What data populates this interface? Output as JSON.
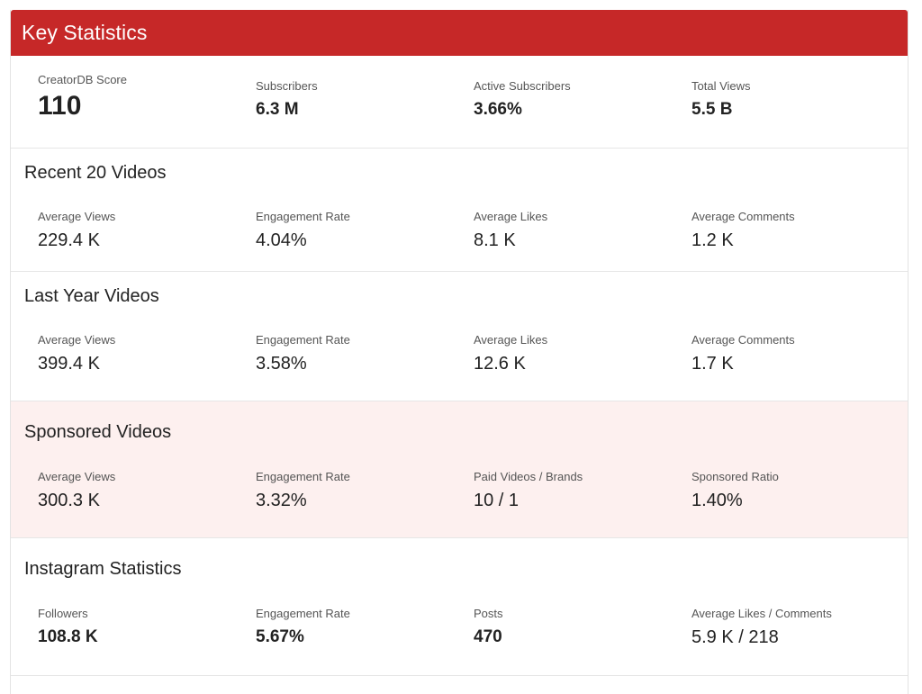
{
  "header": {
    "title": "Key Statistics"
  },
  "overview": {
    "stats": [
      {
        "label": "CreatorDB Score",
        "value": "110"
      },
      {
        "label": "Subscribers",
        "value": "6.3 M"
      },
      {
        "label": "Active Subscribers",
        "value": "3.66%"
      },
      {
        "label": "Total Views",
        "value": "5.5 B"
      }
    ]
  },
  "recent": {
    "title": "Recent 20 Videos",
    "stats": [
      {
        "label": "Average Views",
        "value": "229.4 K"
      },
      {
        "label": "Engagement Rate",
        "value": "4.04%"
      },
      {
        "label": "Average Likes",
        "value": "8.1 K"
      },
      {
        "label": "Average Comments",
        "value": "1.2 K"
      }
    ]
  },
  "lastyear": {
    "title": "Last Year Videos",
    "stats": [
      {
        "label": "Average Views",
        "value": "399.4 K"
      },
      {
        "label": "Engagement Rate",
        "value": "3.58%"
      },
      {
        "label": "Average Likes",
        "value": "12.6 K"
      },
      {
        "label": "Average Comments",
        "value": "1.7 K"
      }
    ]
  },
  "sponsored": {
    "title": "Sponsored Videos",
    "stats": [
      {
        "label": "Average Views",
        "value": "300.3 K"
      },
      {
        "label": "Engagement Rate",
        "value": "3.32%"
      },
      {
        "label": "Paid Videos / Brands",
        "value": "10 / 1"
      },
      {
        "label": "Sponsored Ratio",
        "value": "1.40%"
      }
    ]
  },
  "instagram": {
    "title": "Instagram Statistics",
    "stats": [
      {
        "label": "Followers",
        "value": "108.8 K"
      },
      {
        "label": "Engagement Rate",
        "value": "5.67%"
      },
      {
        "label": "Posts",
        "value": "470"
      },
      {
        "label": "Average Likes / Comments",
        "value": "5.9 K / 218"
      }
    ]
  },
  "colors": {
    "header_bg": "#c62828",
    "sponsored_bg": "#fdf0ef"
  }
}
